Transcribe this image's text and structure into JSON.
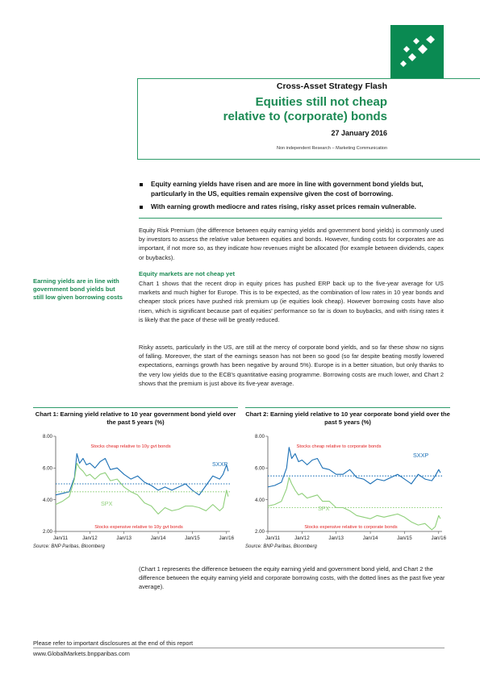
{
  "header": {
    "series_title": "Cross-Asset Strategy Flash",
    "title": "Equities still not cheap\nrelative to (corporate) bonds",
    "date": "27 January 2016",
    "disclaimer": "Non independent Research – Marketing Communication"
  },
  "bullets": [
    "Equity earning yields have risen and are more in line with government bond yields but, particularly in the US, equities remain expensive given the cost of borrowing.",
    "With earning growth mediocre and rates rising, risky asset prices remain vulnerable."
  ],
  "body": {
    "intro": "Equity Risk Premium (the difference between equity earning yields and government bond yields) is commonly used by investors to assess the relative value between equities and bonds. However, funding costs for corporates are as important, if not more so, as they indicate how revenues might be allocated (for example between dividends, capex or buybacks).",
    "subheading": "Equity markets are not cheap yet",
    "sidebar": "Earning yields are in line with government bond yields but still low given borrowing costs",
    "para2": "Chart 1 shows that the recent drop in equity prices has pushed ERP back up to the five-year average for US markets and much higher for Europe. This is to be expected, as the combination of low rates in 10 year bonds and cheaper stock prices have pushed risk premium up (ie equities look cheap). However borrowing costs have also risen, which is significant because part of equities' performance so far is down to buybacks, and with rising rates it is likely that the pace of these will be greatly reduced.",
    "para3": "Risky assets, particularly in the US, are still at the mercy of corporate bond yields, and so far these show no signs of falling. Moreover, the start of the earnings season has not been so good (so far despite beating mostly lowered expectations, earnings growth has been negative by around 5%). Europe is in a better situation, but only thanks to the very low yields due to the ECB's quantitative easing programme. Borrowing costs are much lower, and Chart 2 shows that the premium is just above its five-year average.",
    "note": "(Chart 1 represents the difference between the equity earning yield and government bond yield, and Chart 2 the difference between the equity earning yield and corporate borrowing costs, with the dotted lines as the past five year average)."
  },
  "chart_data": [
    {
      "type": "line",
      "title": "Chart 1: Earning yield relative to 10 year government bond yield over the past 5 years (%)",
      "source": "Source: BNP Paribas, Bloomberg",
      "x_tick_labels": [
        "Jan/11",
        "Jan/12",
        "Jan/13",
        "Jan/14",
        "Jan/15",
        "Jan/16"
      ],
      "y_tick_labels": [
        "8.00",
        "6.00",
        "4.00",
        "2.00"
      ],
      "ylim": [
        2,
        8
      ],
      "xlim": [
        2011.0,
        2016.1
      ],
      "annotations": {
        "top": "Stocks cheap relative to 10y gvt bonds",
        "bottom": "Stocks expensive relative to 10y gvt bonds"
      },
      "averages": {
        "SXXP": 5.0,
        "SPX": 4.5
      },
      "series": [
        {
          "name": "SXXP",
          "color": "#1a6fb5",
          "x": [
            2011.0,
            2011.2,
            2011.4,
            2011.55,
            2011.62,
            2011.7,
            2011.8,
            2011.9,
            2012.0,
            2012.15,
            2012.3,
            2012.45,
            2012.6,
            2012.8,
            2013.0,
            2013.2,
            2013.4,
            2013.6,
            2013.8,
            2014.0,
            2014.2,
            2014.4,
            2014.6,
            2014.8,
            2015.0,
            2015.2,
            2015.4,
            2015.6,
            2015.8,
            2015.9,
            2016.0,
            2016.05
          ],
          "y": [
            4.3,
            4.4,
            4.5,
            5.4,
            6.9,
            6.3,
            6.6,
            6.2,
            6.3,
            6.0,
            6.4,
            6.6,
            5.9,
            6.0,
            5.6,
            5.3,
            5.5,
            5.1,
            4.9,
            4.6,
            4.8,
            4.6,
            4.8,
            5.0,
            4.6,
            4.3,
            4.9,
            5.5,
            5.3,
            5.6,
            6.2,
            5.8
          ]
        },
        {
          "name": "SPX",
          "color": "#8fcf7a",
          "x": [
            2011.0,
            2011.2,
            2011.4,
            2011.55,
            2011.62,
            2011.7,
            2011.8,
            2011.9,
            2012.0,
            2012.15,
            2012.3,
            2012.45,
            2012.6,
            2012.8,
            2013.0,
            2013.2,
            2013.4,
            2013.6,
            2013.8,
            2014.0,
            2014.2,
            2014.4,
            2014.6,
            2014.8,
            2015.0,
            2015.2,
            2015.4,
            2015.6,
            2015.8,
            2015.9,
            2016.0,
            2016.05
          ],
          "y": [
            3.7,
            3.9,
            4.2,
            5.3,
            6.3,
            6.0,
            5.8,
            5.5,
            5.6,
            5.3,
            5.6,
            5.7,
            5.2,
            5.3,
            4.8,
            4.5,
            4.3,
            3.8,
            3.6,
            3.1,
            3.5,
            3.3,
            3.4,
            3.6,
            3.6,
            3.5,
            3.3,
            3.7,
            3.3,
            3.5,
            4.6,
            4.2
          ]
        }
      ]
    },
    {
      "type": "line",
      "title": "Chart 2: Earning yield relative to 10 year corporate bond yield over the past 5 years (%)",
      "source": "Source: BNP Paribas, Bloomberg",
      "x_tick_labels": [
        "Jan/11",
        "Jan/12",
        "Jan/13",
        "Jan/14",
        "Jan/15",
        "Jan/16"
      ],
      "y_tick_labels": [
        "8.00",
        "6.00",
        "4.00",
        "2.00"
      ],
      "ylim": [
        2,
        8
      ],
      "xlim": [
        2011.0,
        2016.1
      ],
      "annotations": {
        "top": "Stocks cheap relative to corporate bonds",
        "bottom": "Stocks expensive relative to corporate bonds"
      },
      "averages": {
        "SXXP": 5.5,
        "SPX": 3.5
      },
      "series": [
        {
          "name": "SXXP",
          "color": "#1a6fb5",
          "x": [
            2011.0,
            2011.2,
            2011.4,
            2011.55,
            2011.62,
            2011.7,
            2011.8,
            2011.9,
            2012.0,
            2012.15,
            2012.3,
            2012.45,
            2012.6,
            2012.8,
            2013.0,
            2013.2,
            2013.4,
            2013.6,
            2013.8,
            2014.0,
            2014.2,
            2014.4,
            2014.6,
            2014.8,
            2015.0,
            2015.2,
            2015.4,
            2015.6,
            2015.8,
            2015.9,
            2016.0,
            2016.05
          ],
          "y": [
            4.8,
            4.9,
            5.1,
            6.0,
            7.3,
            6.6,
            6.9,
            6.4,
            6.5,
            6.2,
            6.5,
            6.6,
            6.0,
            5.9,
            5.6,
            5.6,
            5.9,
            5.4,
            5.3,
            5.0,
            5.3,
            5.2,
            5.4,
            5.6,
            5.3,
            5.0,
            5.6,
            5.3,
            5.2,
            5.5,
            5.9,
            5.7
          ]
        },
        {
          "name": "SPX",
          "color": "#8fcf7a",
          "x": [
            2011.0,
            2011.2,
            2011.4,
            2011.55,
            2011.62,
            2011.7,
            2011.8,
            2011.9,
            2012.0,
            2012.15,
            2012.3,
            2012.45,
            2012.6,
            2012.8,
            2013.0,
            2013.2,
            2013.4,
            2013.6,
            2013.8,
            2014.0,
            2014.2,
            2014.4,
            2014.6,
            2014.8,
            2015.0,
            2015.2,
            2015.4,
            2015.6,
            2015.8,
            2015.9,
            2016.0,
            2016.05
          ],
          "y": [
            3.6,
            3.7,
            3.9,
            4.7,
            5.4,
            5.0,
            4.6,
            4.3,
            4.4,
            4.1,
            4.2,
            4.3,
            3.9,
            3.9,
            3.5,
            3.5,
            3.3,
            3.0,
            2.9,
            2.8,
            3.0,
            2.9,
            3.0,
            3.1,
            2.9,
            2.6,
            2.4,
            2.5,
            2.1,
            2.3,
            3.0,
            2.8
          ]
        }
      ]
    }
  ],
  "footer": {
    "disclosure": "Please refer to important disclosures at the end of this report",
    "website": "www.GlobalMarkets.bnpparibas.com"
  },
  "colors": {
    "brand_green": "#1c8a54",
    "logo_green": "#0a8a52",
    "sxxp_blue": "#1a6fb5",
    "spx_green": "#8fcf7a",
    "annotation_red": "#e02020"
  }
}
